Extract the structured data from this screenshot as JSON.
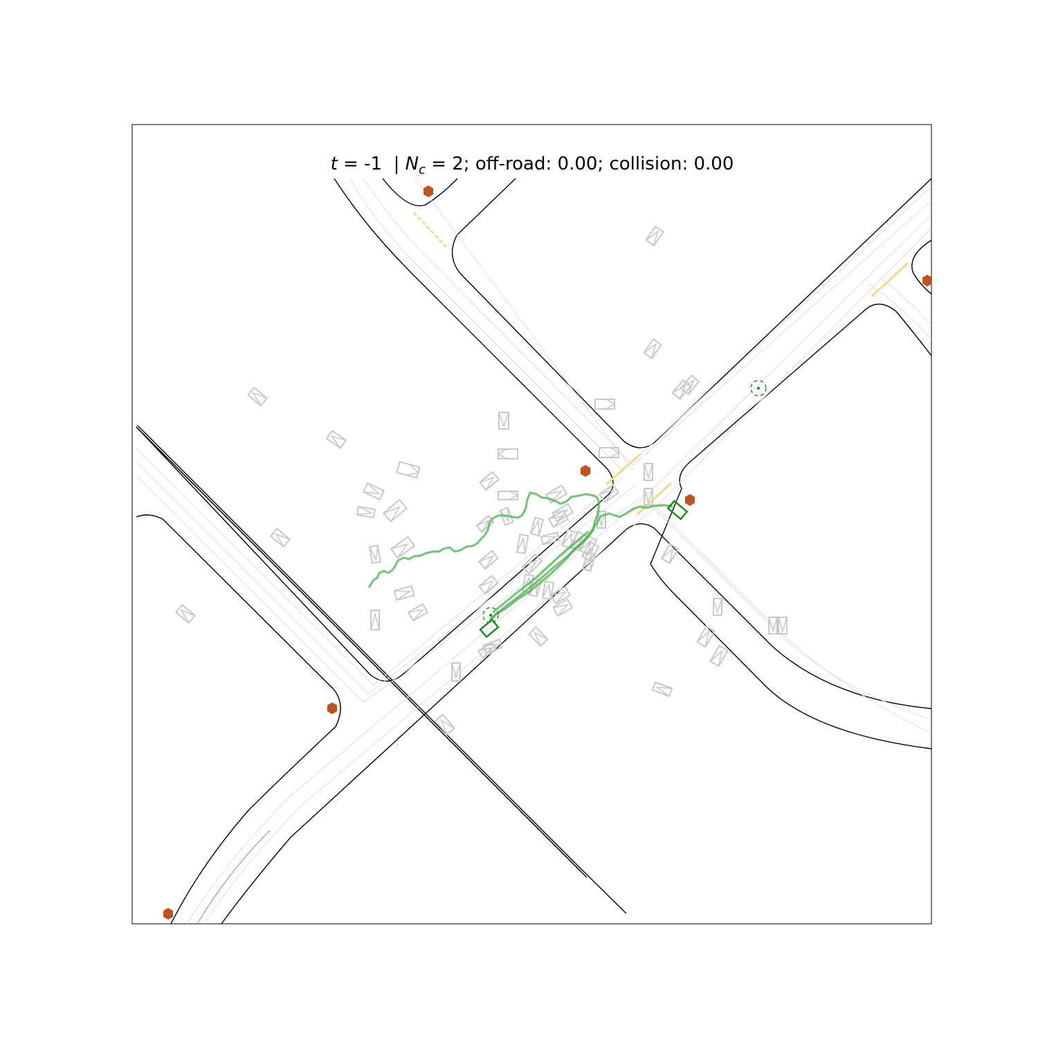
{
  "title": {
    "t_symbol": "t",
    "t_value": " = -1  | ",
    "nc_symbol": "N",
    "nc_subscript": "c",
    "rest": " = 2; off-road: 0.00; collision: 0.00"
  },
  "metrics": {
    "t": -1,
    "n_c": 2,
    "off_road": 0.0,
    "collision": 0.0
  },
  "colors": {
    "road_edge": "#000000",
    "lane_center": "#dcdcdc",
    "crosswalk": "#f5d98a",
    "background_agent": "#c8c8c8",
    "ego_agent": "#138a13",
    "trajectory": "#4caf50",
    "stop_sign": "#c2511c"
  },
  "icons": {
    "stop_sign": "hexagon-icon",
    "goal_marker": "dashed-circle-icon",
    "agent": "oriented-box-icon"
  }
}
